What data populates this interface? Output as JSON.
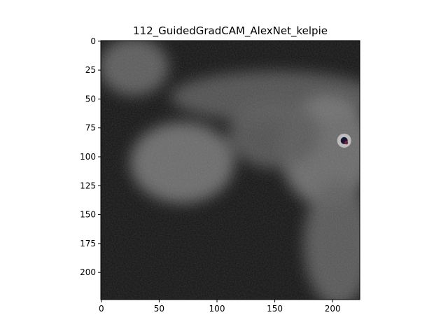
{
  "chart_data": {
    "type": "heatmap",
    "title": "112_GuidedGradCAM_AlexNet_kelpie",
    "xlabel": "",
    "ylabel": "",
    "xlim": [
      -0.5,
      223.5
    ],
    "ylim": [
      223.5,
      -0.5
    ],
    "x_ticks": [
      0,
      50,
      100,
      150,
      200
    ],
    "y_ticks": [
      0,
      25,
      50,
      75,
      100,
      125,
      150,
      175,
      200
    ],
    "x_tick_labels": [
      "0",
      "50",
      "100",
      "150",
      "200"
    ],
    "y_tick_labels": [
      "0",
      "25",
      "50",
      "75",
      "100",
      "125",
      "150",
      "175",
      "200"
    ],
    "grid": false,
    "image_size": [
      224,
      224
    ],
    "colormap": "grayscale guided gradient overlay",
    "background_color": "#161616",
    "highlight_regions": [
      {
        "name": "top-left patch",
        "cx": 28,
        "cy": 22,
        "rx": 30,
        "ry": 25,
        "intensity": 0.55
      },
      {
        "name": "upper body band",
        "cx": 150,
        "cy": 48,
        "rx": 90,
        "ry": 22,
        "intensity": 0.45
      },
      {
        "name": "body left",
        "cx": 70,
        "cy": 105,
        "rx": 45,
        "ry": 35,
        "intensity": 0.7
      },
      {
        "name": "head",
        "cx": 195,
        "cy": 95,
        "rx": 40,
        "ry": 48,
        "intensity": 0.7
      },
      {
        "name": "lower right",
        "cx": 205,
        "cy": 175,
        "rx": 30,
        "ry": 55,
        "intensity": 0.5
      },
      {
        "name": "mid band",
        "cx": 150,
        "cy": 80,
        "rx": 40,
        "ry": 30,
        "intensity": 0.45
      }
    ],
    "eye_spot": {
      "cx": 210,
      "cy": 86
    }
  }
}
